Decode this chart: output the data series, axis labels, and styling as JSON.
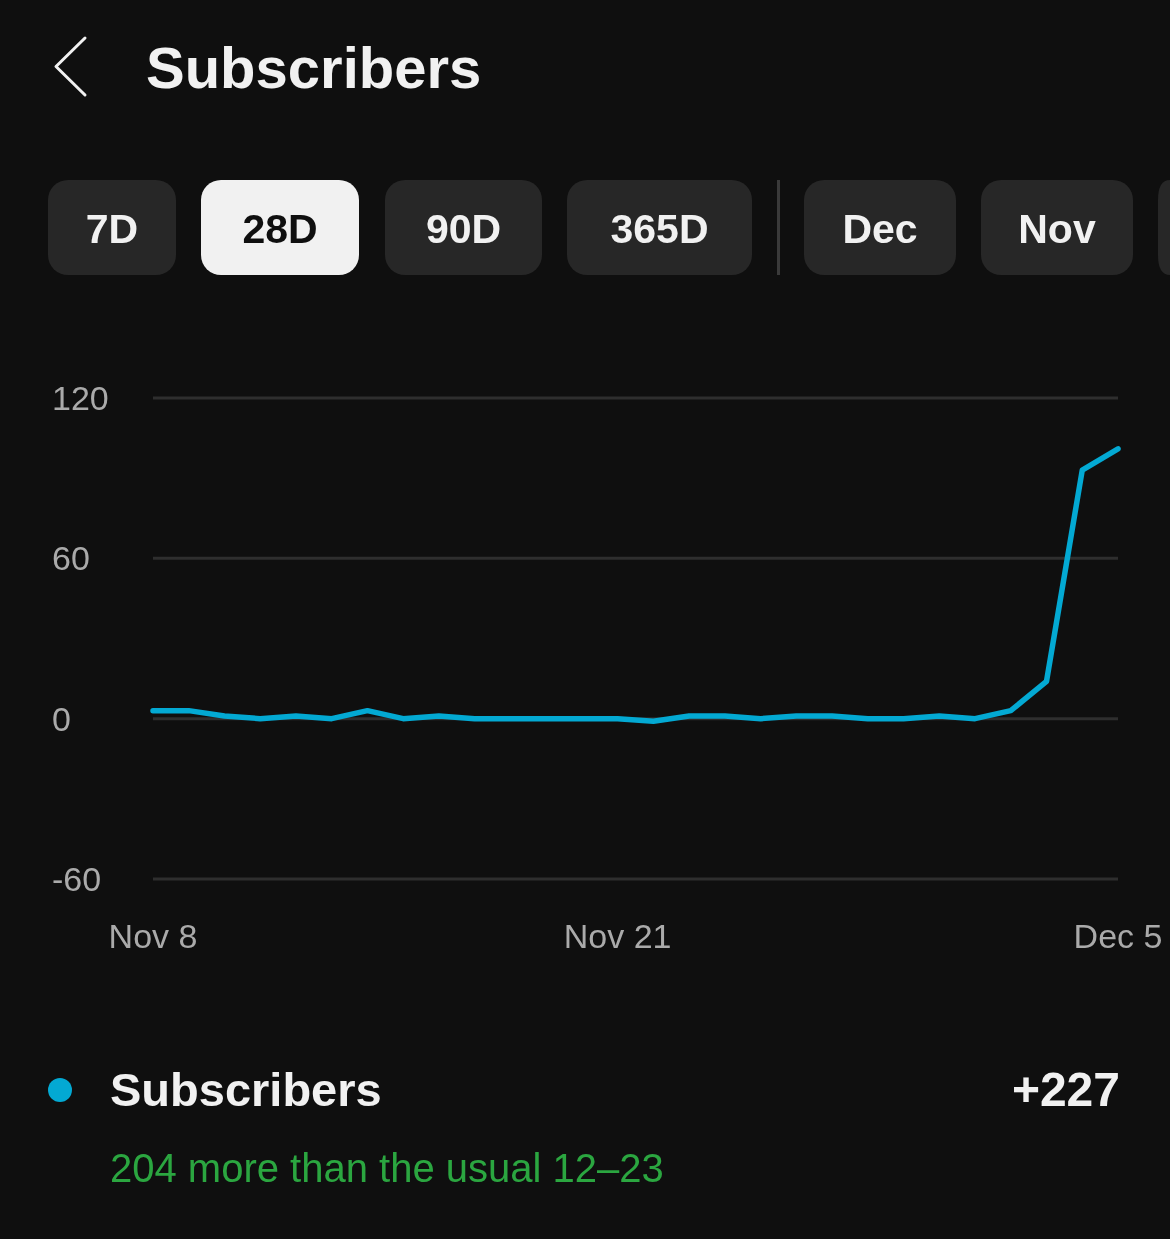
{
  "chart_data": {
    "type": "line",
    "title": "Subscribers",
    "x": [
      "--11-08",
      "--11-09",
      "--11-10",
      "--11-11",
      "--11-12",
      "--11-13",
      "--11-14",
      "--11-15",
      "--11-16",
      "--11-17",
      "--11-18",
      "--11-19",
      "--11-20",
      "--11-21",
      "--11-22",
      "--11-23",
      "--11-24",
      "--11-25",
      "--11-26",
      "--11-27",
      "--11-28",
      "--11-29",
      "--11-30",
      "--12-01",
      "--12-02",
      "--12-03",
      "--12-04",
      "--12-05"
    ],
    "series": [
      {
        "name": "Subscribers",
        "color": "#03a9d3",
        "values": [
          3,
          3,
          1,
          0,
          1,
          0,
          3,
          0,
          1,
          0,
          0,
          0,
          0,
          0,
          -1,
          1,
          1,
          0,
          1,
          1,
          0,
          0,
          1,
          0,
          3,
          14,
          93,
          101
        ]
      }
    ],
    "xlim": [
      "--11-08",
      "--12-05"
    ],
    "xticks": [
      {
        "value": "--11-08",
        "label": "Nov 8"
      },
      {
        "value": "--11-21",
        "label": "Nov 21"
      },
      {
        "value": "--12-05",
        "label": "Dec 5"
      }
    ],
    "ylim": [
      -60,
      120
    ],
    "yticks": [
      -60,
      0,
      60,
      120
    ],
    "grid": "y",
    "legend": "bottom",
    "annotations": [
      "7D",
      "28D",
      "90D",
      "365D",
      "Dec",
      "Nov",
      "+227",
      "204 more than the usual 12–23"
    ]
  }
}
